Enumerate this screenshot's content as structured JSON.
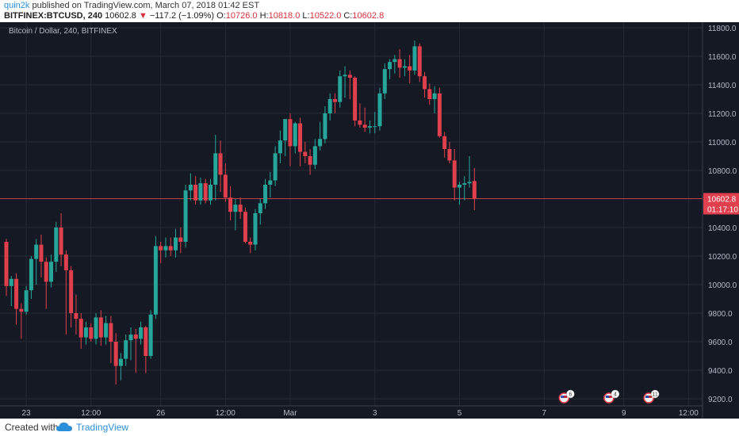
{
  "header": {
    "author": "quin2k",
    "published_text": " published on TradingView.com, March 07, 2018 01:42 EST",
    "symbol": "BITFINEX:BTCUSD, 240",
    "last": "10602.8",
    "change_arrow": "▼",
    "change": "−117.2 (−1.09%)",
    "o_label": "O:",
    "o_value": "10726.0",
    "h_label": "H:",
    "h_value": "10818.0",
    "l_label": "L:",
    "l_value": "10522.0",
    "c_label": "C:",
    "c_value": "10602.8"
  },
  "footer": {
    "created_with": "Created with",
    "brand": "TradingView"
  },
  "colors": {
    "background": "#151924",
    "grid": "#252a36",
    "up": "#26a69a",
    "down": "#e0404d",
    "text": "#b4b8c4",
    "axis_line": "#3a3f4c"
  },
  "chart_data": {
    "type": "candlestick",
    "title": "Bitcoin / Dollar, 240, BITFINEX",
    "ylim": [
      9100,
      11850
    ],
    "yticks": [
      9200,
      9400,
      9600,
      9800,
      10000,
      10200,
      10400,
      10600,
      10800,
      11000,
      11200,
      11400,
      11600,
      11800
    ],
    "last_price": {
      "label": "10602.8",
      "value": 10602.8
    },
    "countdown": "01:17:10",
    "xticks": [
      "23",
      "12:00",
      "26",
      "12:00",
      "Mar",
      "3",
      "5",
      "7",
      "9",
      "12:00"
    ],
    "xtick_index": [
      4,
      17,
      31,
      44,
      57,
      74,
      91,
      108,
      124,
      137
    ],
    "events": [
      {
        "index": 112,
        "label": "6"
      },
      {
        "index": 121,
        "label": "4"
      },
      {
        "index": 129,
        "label": "11"
      }
    ],
    "candles": [
      [
        10300,
        10320,
        9920,
        9990
      ],
      [
        9990,
        10060,
        9850,
        10040
      ],
      [
        10040,
        10080,
        9720,
        9830
      ],
      [
        9830,
        9870,
        9620,
        9810
      ],
      [
        9810,
        9990,
        9790,
        9960
      ],
      [
        9960,
        10200,
        9900,
        10180
      ],
      [
        10180,
        10320,
        10000,
        10280
      ],
      [
        10280,
        10350,
        10050,
        10160
      ],
      [
        10160,
        10190,
        9830,
        10020
      ],
      [
        10020,
        10210,
        9980,
        10160
      ],
      [
        10160,
        10440,
        10090,
        10400
      ],
      [
        10400,
        10500,
        10130,
        10210
      ],
      [
        10210,
        10240,
        9650,
        10100
      ],
      [
        10100,
        10130,
        9700,
        9800
      ],
      [
        9800,
        9930,
        9650,
        9760
      ],
      [
        9760,
        9800,
        9550,
        9630
      ],
      [
        9630,
        9740,
        9580,
        9700
      ],
      [
        9700,
        9730,
        9600,
        9620
      ],
      [
        9620,
        9800,
        9580,
        9770
      ],
      [
        9770,
        9820,
        9570,
        9630
      ],
      [
        9630,
        9780,
        9580,
        9730
      ],
      [
        9730,
        9780,
        9450,
        9600
      ],
      [
        9600,
        9660,
        9300,
        9430
      ],
      [
        9430,
        9520,
        9330,
        9480
      ],
      [
        9480,
        9650,
        9430,
        9610
      ],
      [
        9610,
        9700,
        9470,
        9650
      ],
      [
        9650,
        9690,
        9380,
        9620
      ],
      [
        9620,
        9740,
        9580,
        9700
      ],
      [
        9700,
        9710,
        9380,
        9500
      ],
      [
        9500,
        9820,
        9480,
        9790
      ],
      [
        9790,
        10340,
        9760,
        10270
      ],
      [
        10270,
        10300,
        10150,
        10240
      ],
      [
        10240,
        10330,
        10190,
        10270
      ],
      [
        10270,
        10330,
        10200,
        10240
      ],
      [
        10240,
        10390,
        10190,
        10330
      ],
      [
        10330,
        10400,
        10220,
        10300
      ],
      [
        10300,
        10700,
        10260,
        10660
      ],
      [
        10660,
        10780,
        10590,
        10700
      ],
      [
        10700,
        10760,
        10560,
        10590
      ],
      [
        10590,
        10750,
        10560,
        10710
      ],
      [
        10710,
        10740,
        10570,
        10590
      ],
      [
        10590,
        10740,
        10560,
        10700
      ],
      [
        10700,
        11050,
        10590,
        10920
      ],
      [
        10920,
        11010,
        10650,
        10770
      ],
      [
        10770,
        10850,
        10580,
        10610
      ],
      [
        10610,
        10690,
        10450,
        10510
      ],
      [
        10510,
        10600,
        10380,
        10560
      ],
      [
        10560,
        10610,
        10460,
        10510
      ],
      [
        10510,
        10540,
        10290,
        10300
      ],
      [
        10300,
        10330,
        10220,
        10280
      ],
      [
        10280,
        10530,
        10240,
        10500
      ],
      [
        10500,
        10600,
        10420,
        10570
      ],
      [
        10570,
        10740,
        10530,
        10700
      ],
      [
        10700,
        10790,
        10610,
        10730
      ],
      [
        10730,
        10970,
        10690,
        10920
      ],
      [
        10920,
        11080,
        10850,
        11010
      ],
      [
        11010,
        11160,
        10900,
        11160
      ],
      [
        11160,
        11200,
        10830,
        10970
      ],
      [
        10970,
        11140,
        10920,
        11130
      ],
      [
        11130,
        11170,
        10830,
        10930
      ],
      [
        10930,
        11000,
        10850,
        10900
      ],
      [
        10900,
        10950,
        10770,
        10840
      ],
      [
        10840,
        11020,
        10810,
        10970
      ],
      [
        10970,
        11140,
        10940,
        11020
      ],
      [
        11020,
        11250,
        10990,
        11200
      ],
      [
        11200,
        11340,
        11150,
        11300
      ],
      [
        11300,
        11340,
        11200,
        11280
      ],
      [
        11280,
        11500,
        11240,
        11460
      ],
      [
        11460,
        11530,
        11310,
        11470
      ],
      [
        11470,
        11500,
        11300,
        11450
      ],
      [
        11450,
        11460,
        11110,
        11150
      ],
      [
        11150,
        11270,
        11100,
        11120
      ],
      [
        11120,
        11240,
        11070,
        11100
      ],
      [
        11100,
        11150,
        11060,
        11110
      ],
      [
        11110,
        11210,
        11060,
        11110
      ],
      [
        11110,
        11380,
        11080,
        11340
      ],
      [
        11340,
        11550,
        11300,
        11510
      ],
      [
        11510,
        11580,
        11440,
        11560
      ],
      [
        11560,
        11610,
        11480,
        11580
      ],
      [
        11580,
        11650,
        11450,
        11520
      ],
      [
        11520,
        11580,
        11460,
        11530
      ],
      [
        11530,
        11610,
        11410,
        11500
      ],
      [
        11500,
        11710,
        11470,
        11670
      ],
      [
        11670,
        11690,
        11420,
        11460
      ],
      [
        11460,
        11490,
        11310,
        11370
      ],
      [
        11370,
        11410,
        11260,
        11300
      ],
      [
        11300,
        11390,
        11200,
        11340
      ],
      [
        11340,
        11380,
        11030,
        11040
      ],
      [
        11040,
        11070,
        10890,
        10950
      ],
      [
        10950,
        11000,
        10850,
        10870
      ],
      [
        10870,
        10950,
        10590,
        10680
      ],
      [
        10680,
        10720,
        10560,
        10700
      ],
      [
        10700,
        10760,
        10590,
        10710
      ],
      [
        10710,
        10900,
        10680,
        10720
      ],
      [
        10726,
        10818,
        10522,
        10602.8
      ]
    ]
  }
}
